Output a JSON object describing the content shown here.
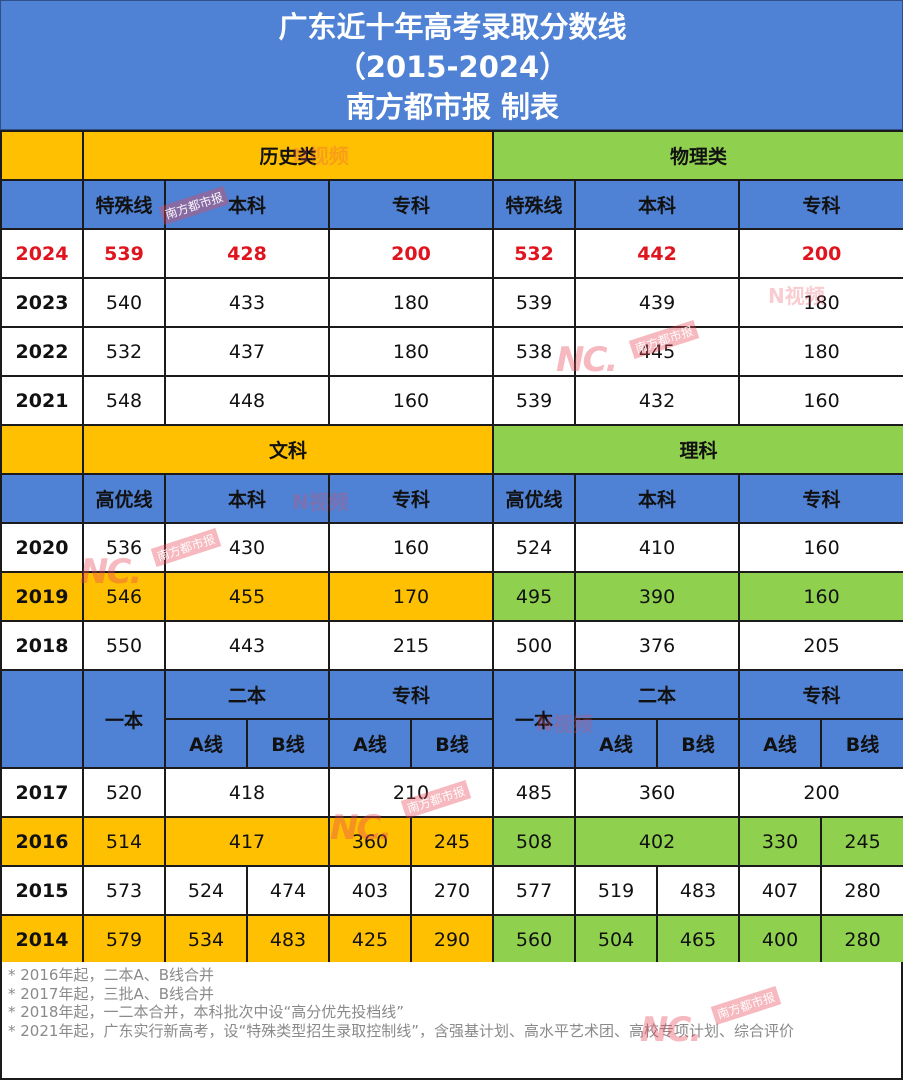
{
  "title": {
    "line1": "广东近十年高考录取分数线",
    "line2": "（2015-2024）",
    "line3": "南方都市报 制表"
  },
  "section1": {
    "left_category": "历史类",
    "right_category": "物理类",
    "subheaders": [
      "特殊线",
      "本科",
      "专科",
      "特殊线",
      "本科",
      "专科"
    ],
    "rows": [
      {
        "year": "2024",
        "values": [
          "539",
          "428",
          "200",
          "532",
          "442",
          "200"
        ]
      },
      {
        "year": "2023",
        "values": [
          "540",
          "433",
          "180",
          "539",
          "439",
          "180"
        ]
      },
      {
        "year": "2022",
        "values": [
          "532",
          "437",
          "180",
          "538",
          "445",
          "180"
        ]
      },
      {
        "year": "2021",
        "values": [
          "548",
          "448",
          "160",
          "539",
          "432",
          "160"
        ]
      }
    ]
  },
  "section2": {
    "left_category": "文科",
    "right_category": "理科",
    "subheaders": [
      "高优线",
      "本科",
      "专科",
      "高优线",
      "本科",
      "专科"
    ],
    "rows": [
      {
        "year": "2020",
        "values": [
          "536",
          "430",
          "160",
          "524",
          "410",
          "160"
        ]
      },
      {
        "year": "2019",
        "values": [
          "546",
          "455",
          "170",
          "495",
          "390",
          "160"
        ]
      },
      {
        "year": "2018",
        "values": [
          "550",
          "443",
          "215",
          "500",
          "376",
          "205"
        ]
      }
    ]
  },
  "section3": {
    "headers": {
      "yiben": "一本",
      "erben": "二本",
      "zhuanke": "专科",
      "a_line": "A线",
      "b_line": "B线"
    },
    "rows": {
      "y2017": {
        "year": "2017",
        "values": [
          "520",
          "418",
          "210",
          "485",
          "360",
          "200"
        ]
      },
      "y2016": {
        "year": "2016",
        "values": [
          "514",
          "417",
          "360",
          "245",
          "508",
          "402",
          "330",
          "245"
        ]
      },
      "y2015": {
        "year": "2015",
        "values": [
          "573",
          "524",
          "474",
          "403",
          "270",
          "577",
          "519",
          "483",
          "407",
          "280"
        ]
      },
      "y2014": {
        "year": "2014",
        "values": [
          "579",
          "534",
          "483",
          "425",
          "290",
          "560",
          "504",
          "465",
          "400",
          "280"
        ]
      }
    }
  },
  "notes": [
    "* 2016年起，二本A、B线合并",
    "* 2017年起，三批A、B线合并",
    "* 2018年起，一二本合并，本科批次中设“高分优先投档线”",
    "* 2021年起，广东实行新高考，设“特殊类型招生录取控制线”，含强基计划、高水平艺术团、高校专项计划、综合评价"
  ],
  "watermark": {
    "logo": "NC.",
    "brand": "南方都市报",
    "video": "N视频"
  },
  "colors": {
    "header_blue": "#4f81d4",
    "history_orange": "#fec000",
    "physics_green": "#8fd14f",
    "highlight_red": "#e0141e"
  }
}
